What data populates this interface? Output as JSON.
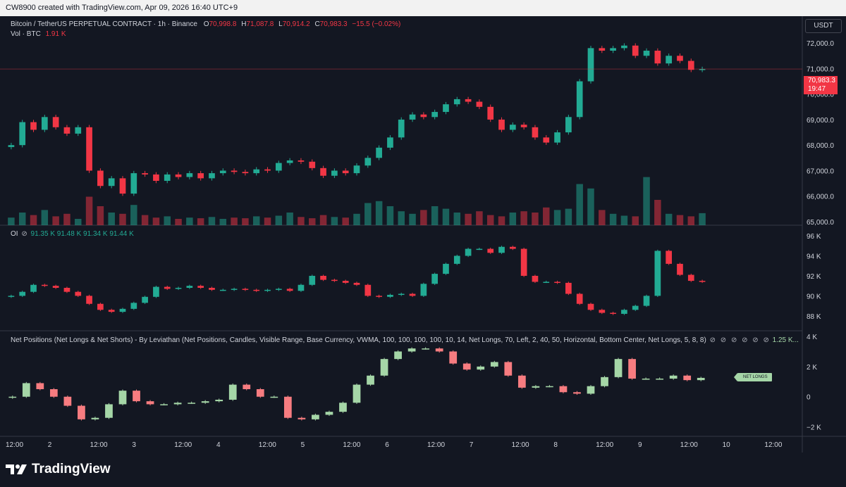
{
  "header": {
    "title": "CW8900 created with TradingView.com, Apr 09, 2026 16:40 UTC+9"
  },
  "main_legend": {
    "symbol": "Bitcoin / TetherUS PERPETUAL CONTRACT · 1h · Binance",
    "o_label": "O",
    "o_value": "70,998.8",
    "h_label": "H",
    "h_value": "71,087.8",
    "l_label": "L",
    "l_value": "70,914.2",
    "c_label": "C",
    "c_value": "70,983.3",
    "change": "−15.5 (−0.02%)"
  },
  "vol_legend": {
    "label": "Vol · BTC",
    "value": "1.91 K"
  },
  "oi_legend": {
    "label": "OI",
    "values": [
      "91.35 K",
      "91.48 K",
      "91.34 K",
      "91.44 K"
    ]
  },
  "np_legend": {
    "label": "Net Positions (Net Longs & Net Shorts) - By Leviathan (Net Positions, Candles, Visible Range, Base Currency, VWMA, 100, 100, 100, 100, 10, 14, Net Longs, 70, Left, 2, 40, 50, Horizontal, Bottom Center, Net Longs, 5, 8, 8)",
    "value": "1.25 K..."
  },
  "currency_button": "USDT",
  "last_price": {
    "price": "70,983.3",
    "countdown": "19:47"
  },
  "net_longs_tag": "NET LONGS",
  "price_axis": [
    "72,000.0",
    "71,000.0",
    "70,000.0",
    "69,000.0",
    "68,000.0",
    "67,000.0",
    "66,000.0",
    "65,000.0"
  ],
  "oi_axis": [
    "96 K",
    "94 K",
    "92 K",
    "90 K",
    "88 K"
  ],
  "np_axis": [
    "4 K",
    "2 K",
    "0",
    "−2 K"
  ],
  "time_axis": [
    "12:00",
    "2",
    "12:00",
    "3",
    "12:00",
    "4",
    "12:00",
    "5",
    "12:00",
    "6",
    "12:00",
    "7",
    "12:00",
    "8",
    "12:00",
    "9",
    "12:00",
    "10",
    "12:00"
  ],
  "colors": {
    "up": "#22ab94",
    "down": "#f23645",
    "np_up": "#a5d6a7",
    "np_down": "#f77c80",
    "bg": "#131722"
  },
  "brand": "TradingView",
  "chart_data": [
    {
      "type": "candlestick",
      "title": "Bitcoin / TetherUS PERPETUAL CONTRACT · 1h · Binance",
      "ylim": [
        65000,
        72500
      ],
      "series": [
        {
          "name": "Close (sampled)",
          "values": [
            68000,
            68900,
            68600,
            69100,
            68700,
            68450,
            68700,
            67000,
            66400,
            66700,
            66100,
            66900,
            66850,
            66600,
            66850,
            66750,
            66900,
            66700,
            66900,
            67000,
            66950,
            66900,
            67050,
            67000,
            67300,
            67400,
            67350,
            67100,
            66800,
            67000,
            66900,
            67200,
            67500,
            67900,
            68300,
            69000,
            69200,
            69100,
            69300,
            69600,
            69800,
            69700,
            69500,
            69000,
            68600,
            68800,
            68700,
            68300,
            68100,
            68500,
            69100,
            70500,
            71800,
            71700,
            71800,
            71900,
            71500,
            71700,
            71200,
            71500,
            71300,
            70950,
            70983
          ]
        }
      ]
    },
    {
      "type": "bar",
      "title": "Vol · BTC",
      "ylim": [
        0,
        10
      ],
      "series": [
        {
          "name": "Vol · BTC",
          "values": [
            1.2,
            2.0,
            1.6,
            2.4,
            1.4,
            1.8,
            1.0,
            4.5,
            3.0,
            2.0,
            1.8,
            3.2,
            1.6,
            1.2,
            1.4,
            1.0,
            1.2,
            1.1,
            1.3,
            1.0,
            1.2,
            1.1,
            1.4,
            1.2,
            1.5,
            2.0,
            1.3,
            1.1,
            1.6,
            1.3,
            1.2,
            1.8,
            3.5,
            3.8,
            3.0,
            2.2,
            1.8,
            2.4,
            3.0,
            2.6,
            2.0,
            1.8,
            2.2,
            1.6,
            1.4,
            2.0,
            2.2,
            2.0,
            2.8,
            2.4,
            2.6,
            6.5,
            5.8,
            2.4,
            1.8,
            1.5,
            1.4,
            7.6,
            4.0,
            1.8,
            1.6,
            1.4,
            1.9
          ]
        }
      ]
    },
    {
      "type": "candlestick",
      "title": "OI",
      "ylim": [
        87000,
        96500
      ],
      "series": [
        {
          "name": "OI (sampled)",
          "values": [
            90000,
            90400,
            91100,
            91000,
            90800,
            90400,
            90000,
            89200,
            88600,
            88400,
            88700,
            89300,
            89900,
            90900,
            90700,
            90800,
            91000,
            90800,
            90600,
            90600,
            90700,
            90600,
            90500,
            90600,
            90700,
            90500,
            91100,
            92000,
            91600,
            91500,
            91300,
            91100,
            90000,
            89900,
            90100,
            90200,
            90000,
            91200,
            92200,
            93200,
            94000,
            94700,
            94700,
            94300,
            94900,
            94700,
            92000,
            91400,
            91400,
            91300,
            90200,
            89200,
            88600,
            88300,
            88200,
            88600,
            89000,
            90000,
            94500,
            93200,
            92100,
            91500,
            91400
          ]
        }
      ]
    },
    {
      "type": "candlestick",
      "title": "Net Positions (Net Longs & Net Shorts)",
      "ylim": [
        -2300,
        4000
      ],
      "series": [
        {
          "name": "Net Longs (sampled)",
          "values": [
            0,
            900,
            500,
            0,
            -600,
            -1500,
            -1400,
            -500,
            400,
            -300,
            -500,
            -500,
            -400,
            -400,
            -300,
            -200,
            800,
            500,
            0,
            0,
            -1400,
            -1500,
            -1200,
            -1000,
            -400,
            800,
            1400,
            2500,
            3000,
            3200,
            3200,
            3000,
            2200,
            1800,
            2000,
            2300,
            1400,
            600,
            700,
            700,
            300,
            200,
            700,
            1300,
            2500,
            1200,
            1200,
            1200,
            1400,
            1100,
            1250
          ]
        }
      ]
    }
  ]
}
